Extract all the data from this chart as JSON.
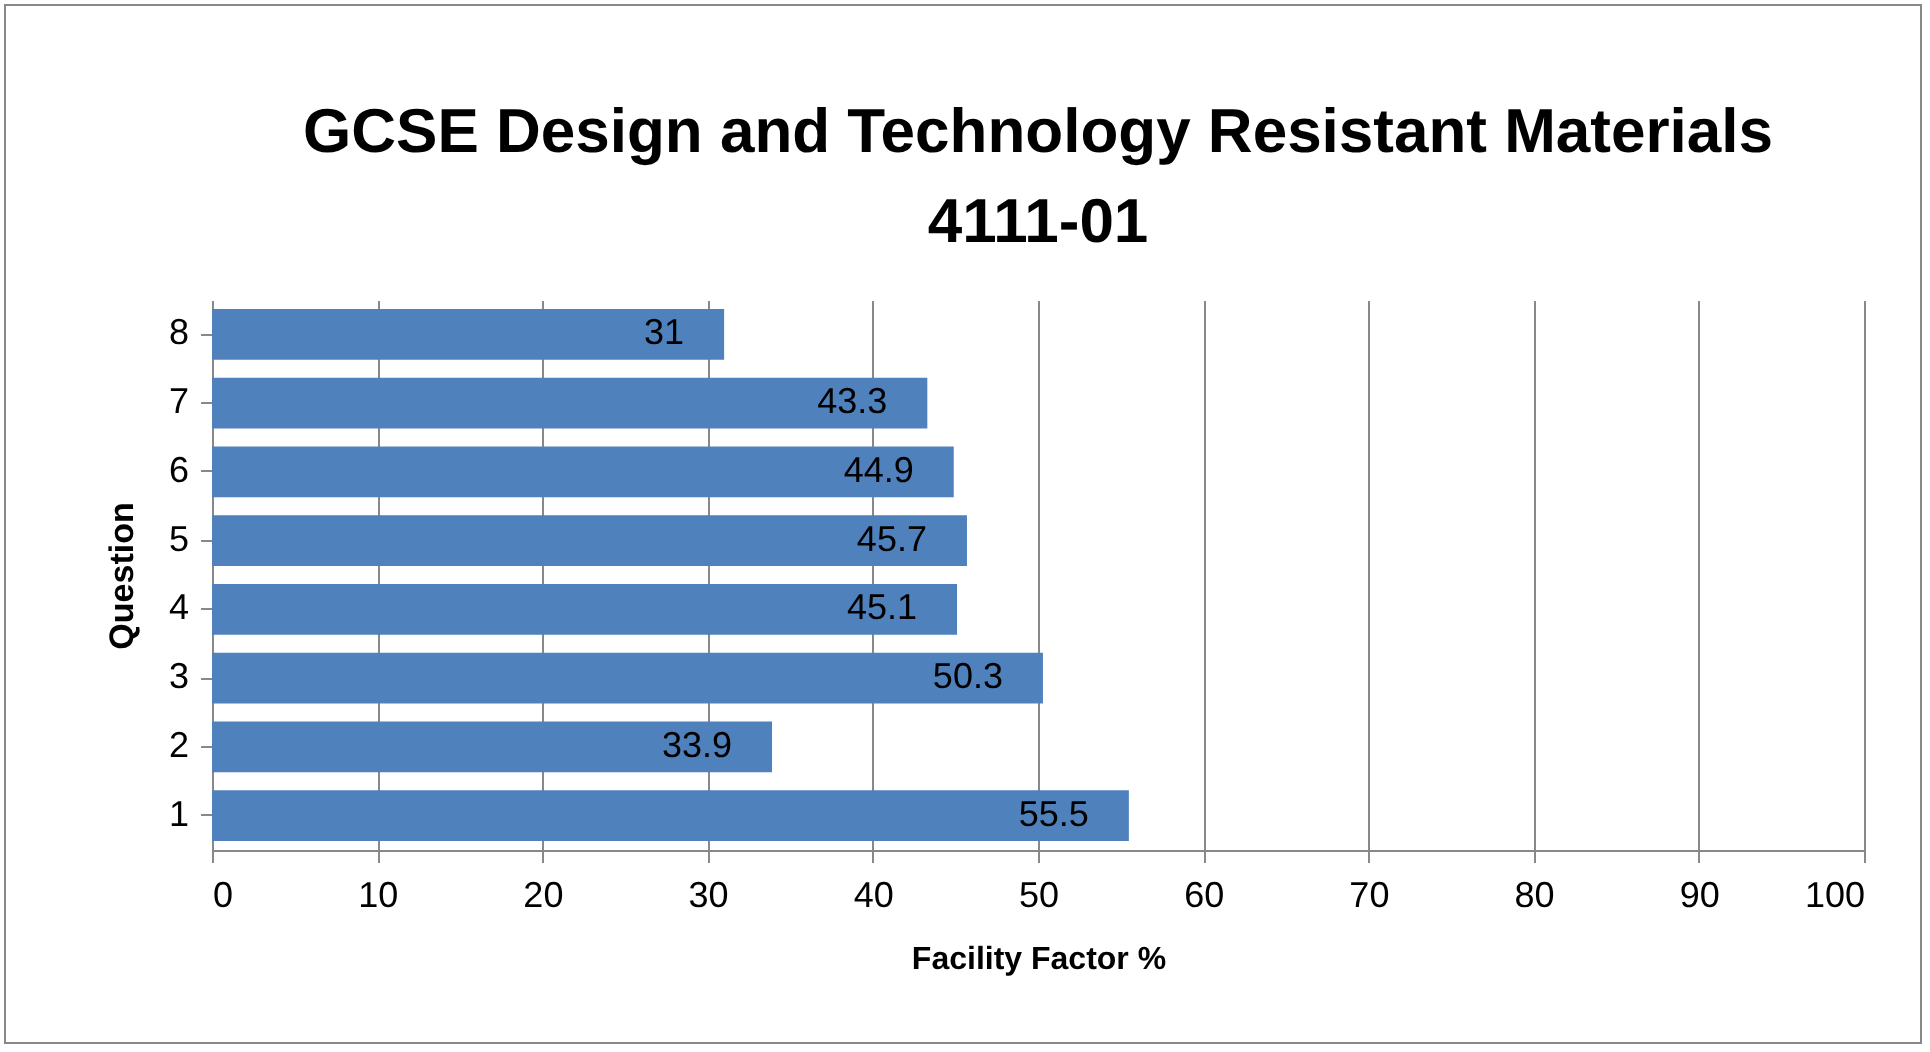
{
  "chart_data": {
    "type": "bar",
    "orientation": "horizontal",
    "title": "GCSE Design and Technology Resistant Materials 4111-01",
    "xlabel": "Facility Factor %",
    "ylabel": "Question",
    "categories": [
      "8",
      "7",
      "6",
      "5",
      "4",
      "3",
      "2",
      "1"
    ],
    "values": [
      31,
      43.3,
      44.9,
      45.7,
      45.1,
      50.3,
      33.9,
      55.5
    ],
    "color": "#4f81bd",
    "xlim": [
      0,
      100
    ],
    "xticks": [
      0,
      10,
      20,
      30,
      40,
      50,
      60,
      70,
      80,
      90,
      100
    ],
    "grid": "x",
    "data_labels": true
  }
}
